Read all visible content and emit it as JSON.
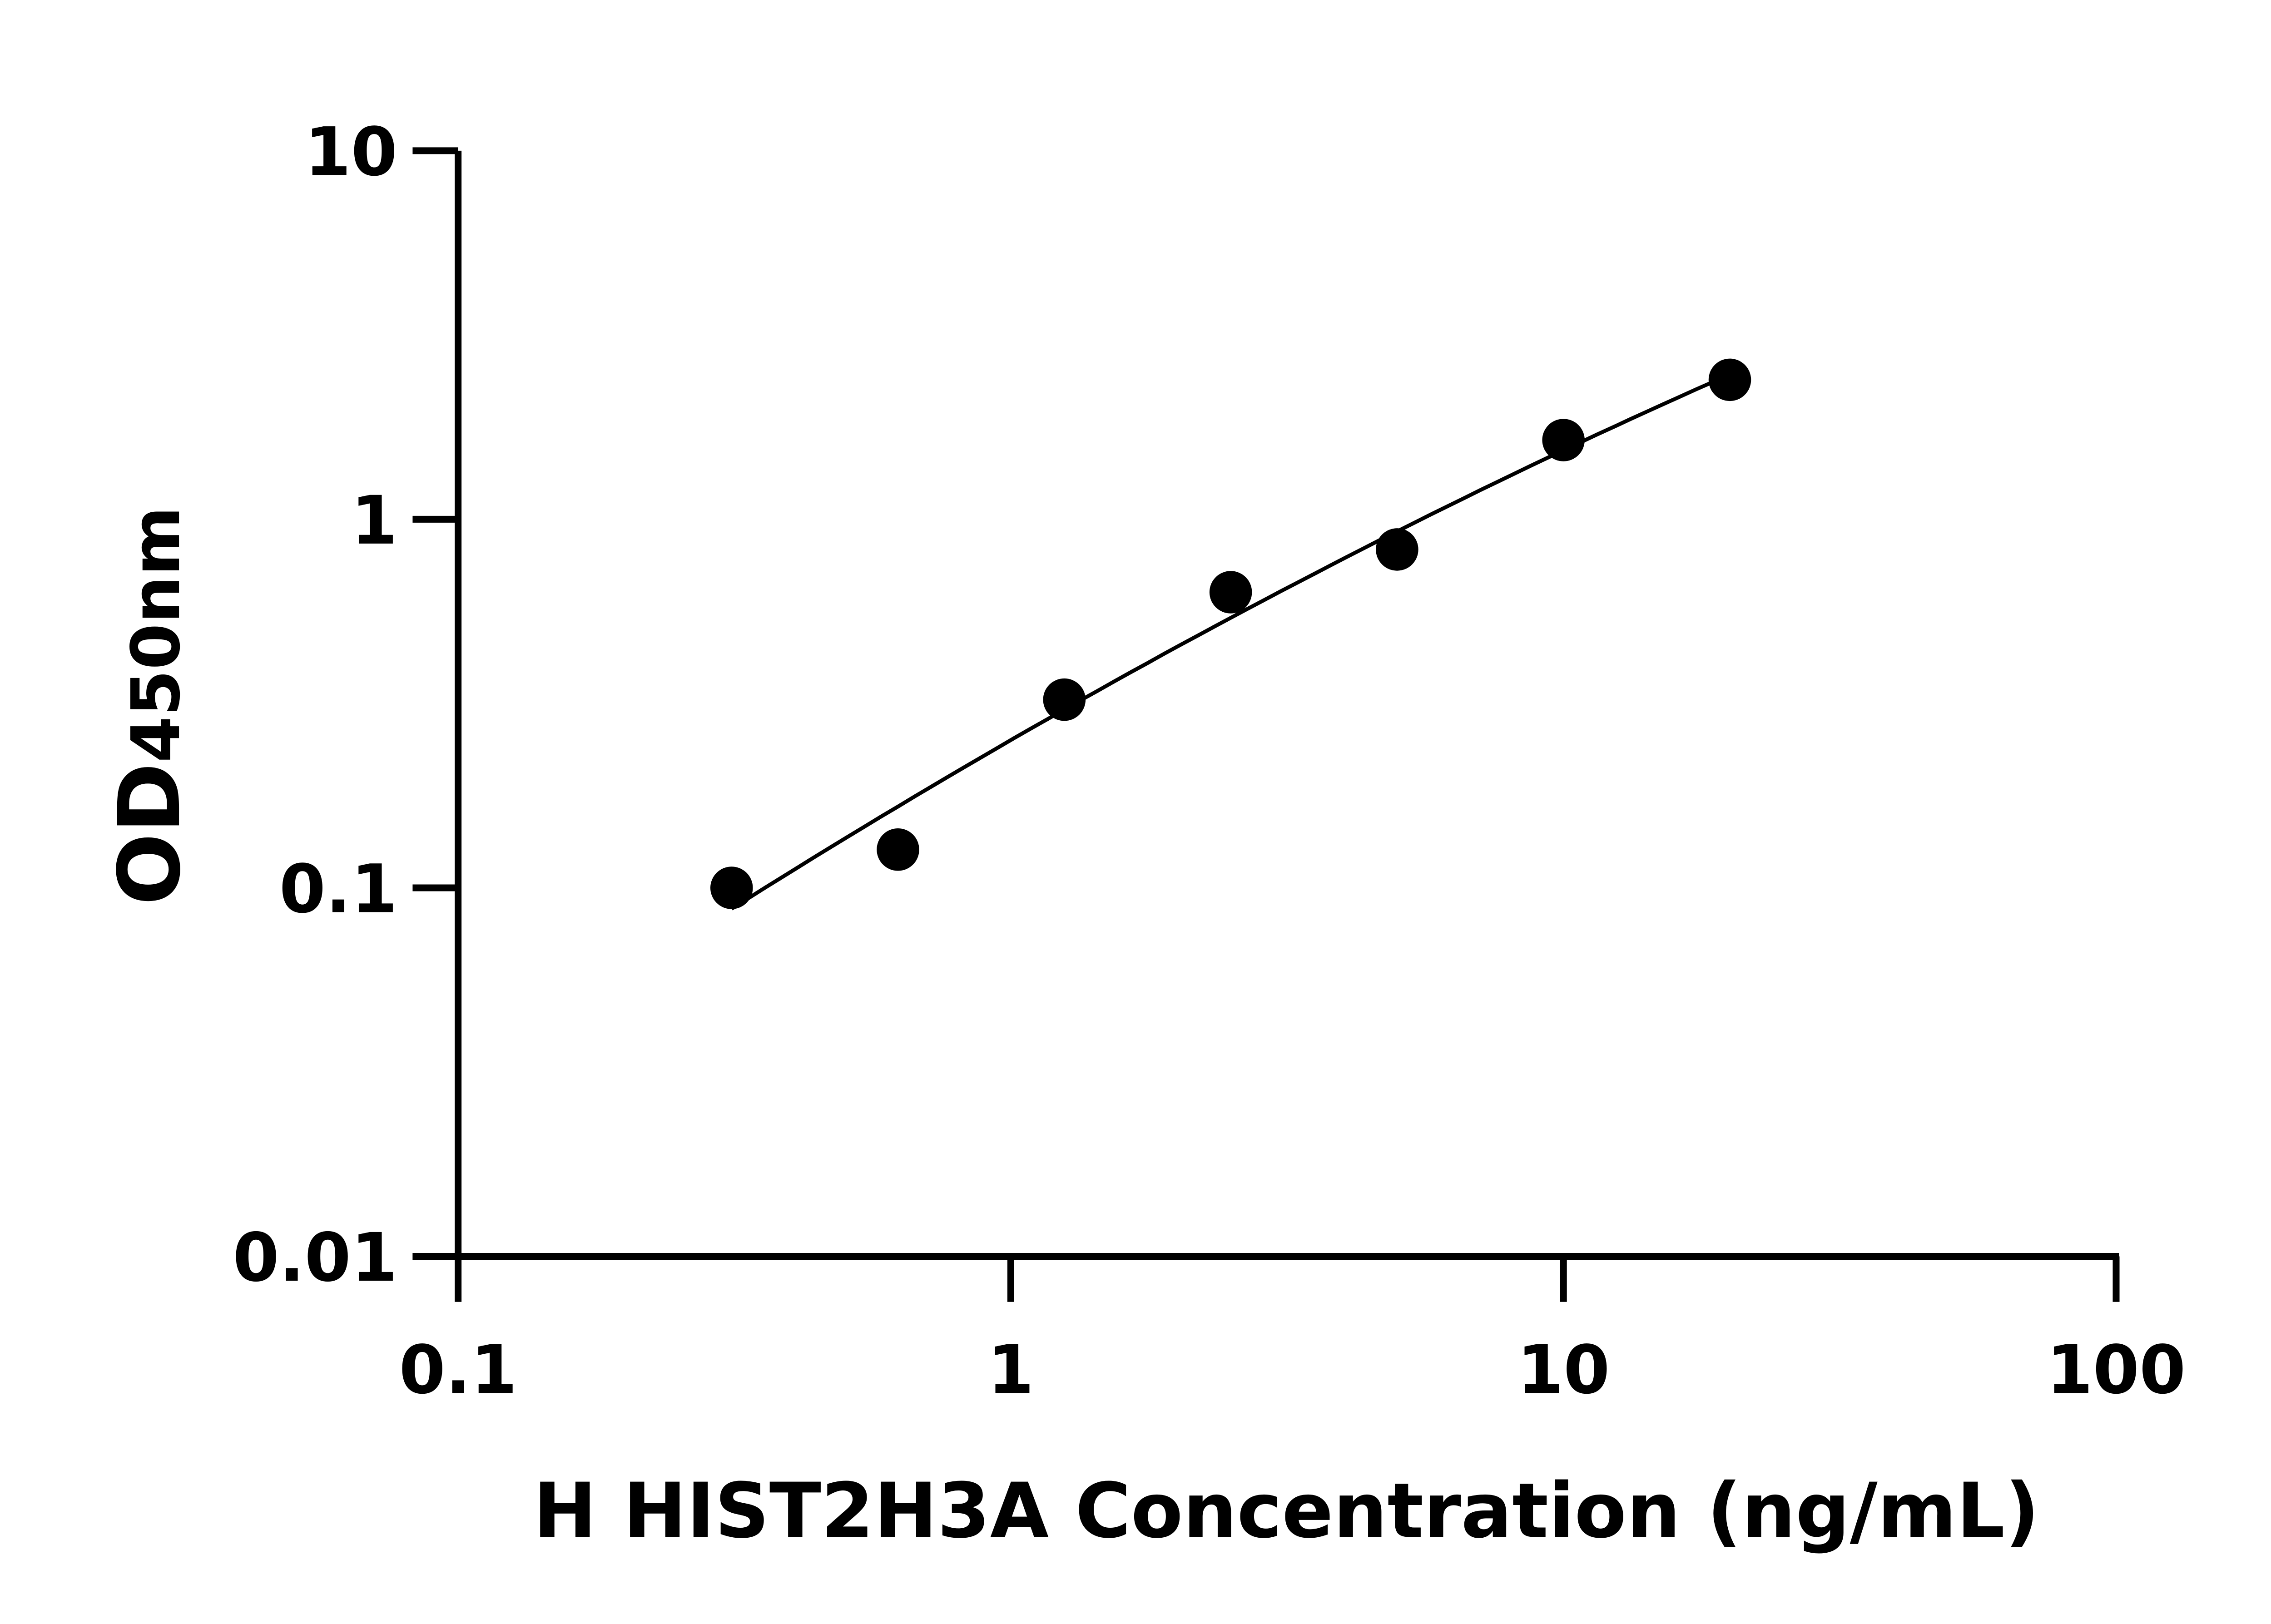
{
  "chart_data": {
    "type": "scatter",
    "title": "",
    "xlabel": "H HIST2H3A Concentration (ng/mL)",
    "ylabel_main": "OD",
    "ylabel_sub": "450nm",
    "x_scale": "log",
    "y_scale": "log",
    "xlim": [
      0.1,
      100
    ],
    "ylim": [
      0.01,
      10
    ],
    "x_ticks": [
      "0.1",
      "1",
      "10",
      "100"
    ],
    "y_ticks": [
      "0.01",
      "0.1",
      "1",
      "10"
    ],
    "grid": false,
    "legend": "none",
    "marker_color": "#000000",
    "fit": "curve",
    "x": [
      0.3125,
      0.625,
      1.25,
      2.5,
      5,
      10,
      20
    ],
    "y": [
      0.1,
      0.127,
      0.324,
      0.634,
      0.828,
      1.64,
      2.39
    ]
  }
}
